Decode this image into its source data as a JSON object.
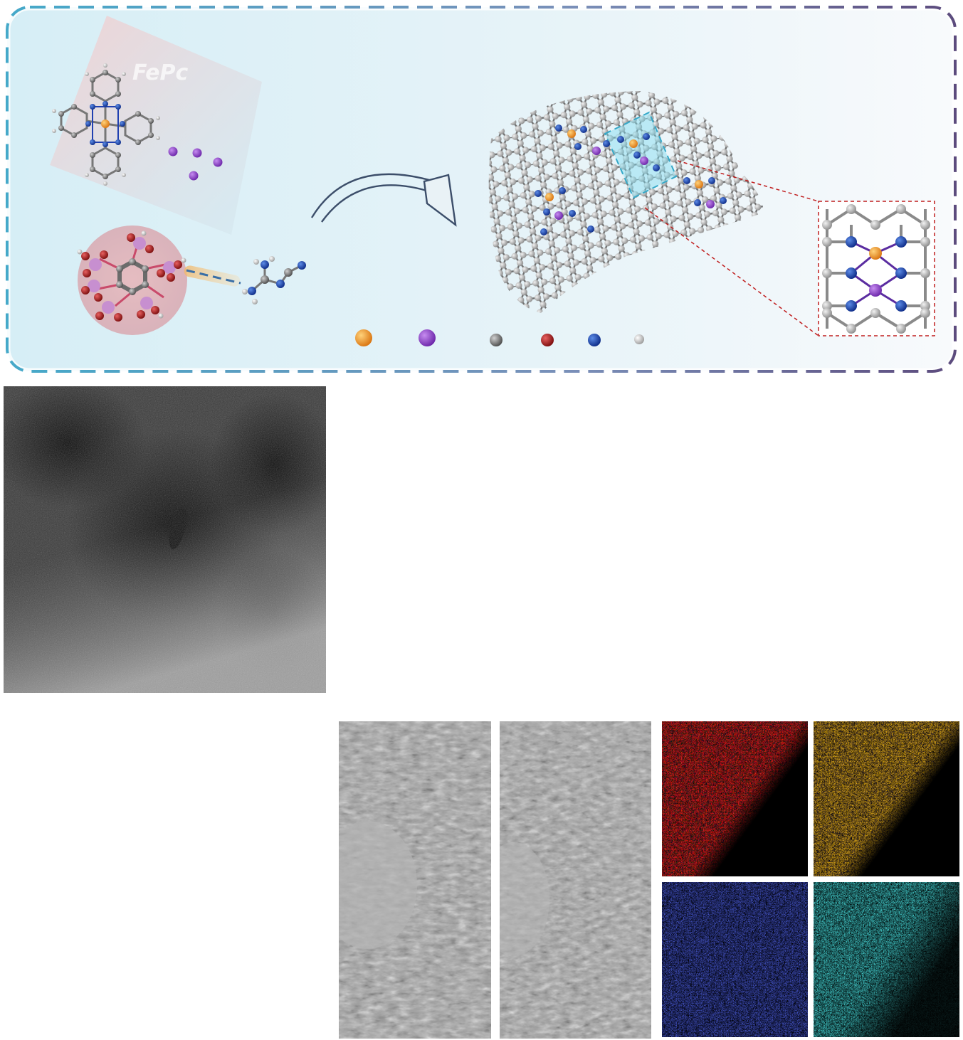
{
  "scheme": {
    "precursor_label": "FePc",
    "colors": {
      "frame_start": "#45a9c9",
      "frame_end": "#5c4b7d",
      "fe": "#e07b1a",
      "k": "#8a3cc4",
      "c": "#7a7a7a",
      "o": "#b01818",
      "n": "#1e3fae",
      "h": "#c8c8c8",
      "p": "#c78fd0"
    },
    "legend_balls": [
      "fe-ball",
      "k-ball",
      "c-ball",
      "o-ball",
      "n-ball",
      "h-ball"
    ]
  },
  "panels": {
    "sem": "sem-image",
    "tem": [
      "tem-image-1",
      "tem-image-2"
    ],
    "eds_maps": [
      {
        "name": "eds-map-red",
        "color": "#ff2020"
      },
      {
        "name": "eds-map-orange",
        "color": "#ff8c1a"
      },
      {
        "name": "eds-map-blue",
        "color": "#2a3cff"
      },
      {
        "name": "eds-map-cyan",
        "color": "#2ee6e6"
      }
    ]
  }
}
